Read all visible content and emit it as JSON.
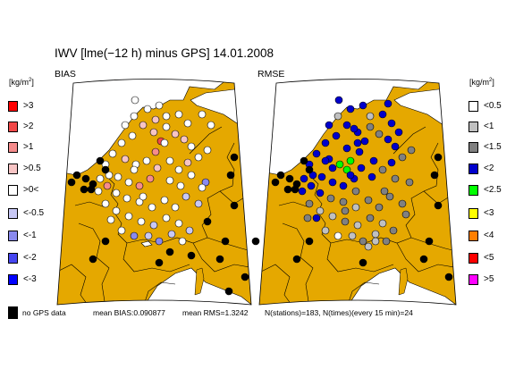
{
  "title": "IWV [lme(−12 h) minus GPS] 14.01.2008",
  "panels": {
    "bias": {
      "label": "BIAS"
    },
    "rmse": {
      "label": "RMSE"
    }
  },
  "legend_unit": {
    "base": "[kg/m",
    "exp": "2",
    "close": "]"
  },
  "bias_legend": [
    {
      "label": ">3",
      "color": "#ff0000"
    },
    {
      "label": ">2",
      "color": "#f24848"
    },
    {
      "label": ">1",
      "color": "#f58c8c"
    },
    {
      "label": ">0.5",
      "color": "#f7c4c4"
    },
    {
      "label": ">0<",
      "color": "#ffffff"
    },
    {
      "label": "<-0.5",
      "color": "#c8c8f5"
    },
    {
      "label": "<-1",
      "color": "#8a8aee"
    },
    {
      "label": "<-2",
      "color": "#4646f0"
    },
    {
      "label": "<-3",
      "color": "#0000ff"
    }
  ],
  "rmse_legend": [
    {
      "label": "<0.5",
      "color": "#ffffff"
    },
    {
      "label": "<1",
      "color": "#c0c0c0"
    },
    {
      "label": "<1.5",
      "color": "#808080"
    },
    {
      "label": "<2",
      "color": "#0000cc"
    },
    {
      "label": "<2.5",
      "color": "#00ff00"
    },
    {
      "label": "<3",
      "color": "#ffff00"
    },
    {
      "label": "<4",
      "color": "#ff7f00"
    },
    {
      "label": "<5",
      "color": "#ff0000"
    },
    {
      "label": ">5",
      "color": "#ff00ff"
    }
  ],
  "footer": {
    "no_gps": "no GPS data",
    "mean_bias": "mean BIAS:0.090877",
    "mean_rms": "mean RMS=1.3242",
    "counts": "N(stations)=183, N(times)(every 15 min)=24"
  },
  "colors": {
    "land": "#e5a800",
    "sea": "#ffffff",
    "border": "#000000",
    "no_gps": "#000000"
  }
}
